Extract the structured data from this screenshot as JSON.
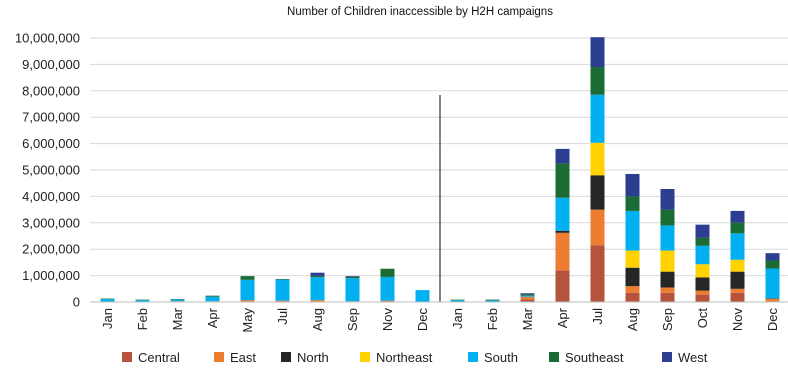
{
  "chart_data": {
    "type": "bar",
    "stacked": true,
    "title": "Number of Children inaccessible by H2H campaigns",
    "xlabel": "",
    "ylabel": "",
    "ylim": [
      0,
      10000000
    ],
    "yticks": [
      "0",
      "1,000,000",
      "2,000,000",
      "3,000,000",
      "4,000,000",
      "5,000,000",
      "6,000,000",
      "7,000,000",
      "8,000,000",
      "9,000,000",
      "10,000,000"
    ],
    "grid": true,
    "legend_position": "bottom",
    "divider_after_index": 9,
    "categories": [
      "Jan",
      "Feb",
      "Mar",
      "Apr",
      "May",
      "Jul",
      "Aug",
      "Sep",
      "Nov",
      "Dec",
      "Jan",
      "Feb",
      "Mar",
      "Apr",
      "Jul",
      "Aug",
      "Sep",
      "Oct",
      "Nov",
      "Dec"
    ],
    "series": [
      {
        "name": "Central",
        "color": "#b5533c",
        "values": [
          0,
          0,
          0,
          0,
          0,
          0,
          0,
          0,
          0,
          0,
          0,
          0,
          100000,
          1200000,
          2150000,
          350000,
          350000,
          280000,
          350000,
          30000
        ]
      },
      {
        "name": "East",
        "color": "#ed7d31",
        "values": [
          20000,
          20000,
          30000,
          30000,
          70000,
          50000,
          70000,
          30000,
          50000,
          0,
          10000,
          20000,
          100000,
          1420000,
          1350000,
          250000,
          200000,
          150000,
          150000,
          90000
        ]
      },
      {
        "name": "North",
        "color": "#262626",
        "values": [
          0,
          0,
          0,
          0,
          0,
          0,
          0,
          0,
          0,
          0,
          0,
          0,
          0,
          80000,
          1300000,
          700000,
          600000,
          500000,
          650000,
          20000
        ]
      },
      {
        "name": "Northeast",
        "color": "#ffd200",
        "values": [
          0,
          0,
          0,
          0,
          0,
          0,
          0,
          0,
          0,
          0,
          0,
          0,
          0,
          0,
          1230000,
          650000,
          800000,
          500000,
          450000,
          0
        ]
      },
      {
        "name": "South",
        "color": "#00b0f0",
        "values": [
          90000,
          50000,
          60000,
          170000,
          770000,
          800000,
          870000,
          870000,
          900000,
          450000,
          60000,
          40000,
          40000,
          1250000,
          1820000,
          1500000,
          950000,
          700000,
          1000000,
          1130000
        ]
      },
      {
        "name": "Southeast",
        "color": "#1b6b34",
        "values": [
          20000,
          20000,
          20000,
          40000,
          140000,
          20000,
          50000,
          50000,
          310000,
          0,
          20000,
          30000,
          40000,
          1300000,
          1050000,
          550000,
          600000,
          300000,
          400000,
          300000
        ]
      },
      {
        "name": "West",
        "color": "#2b3e8f",
        "values": [
          0,
          0,
          0,
          0,
          0,
          0,
          120000,
          30000,
          0,
          0,
          0,
          0,
          50000,
          550000,
          1130000,
          850000,
          780000,
          500000,
          450000,
          280000
        ]
      }
    ]
  }
}
